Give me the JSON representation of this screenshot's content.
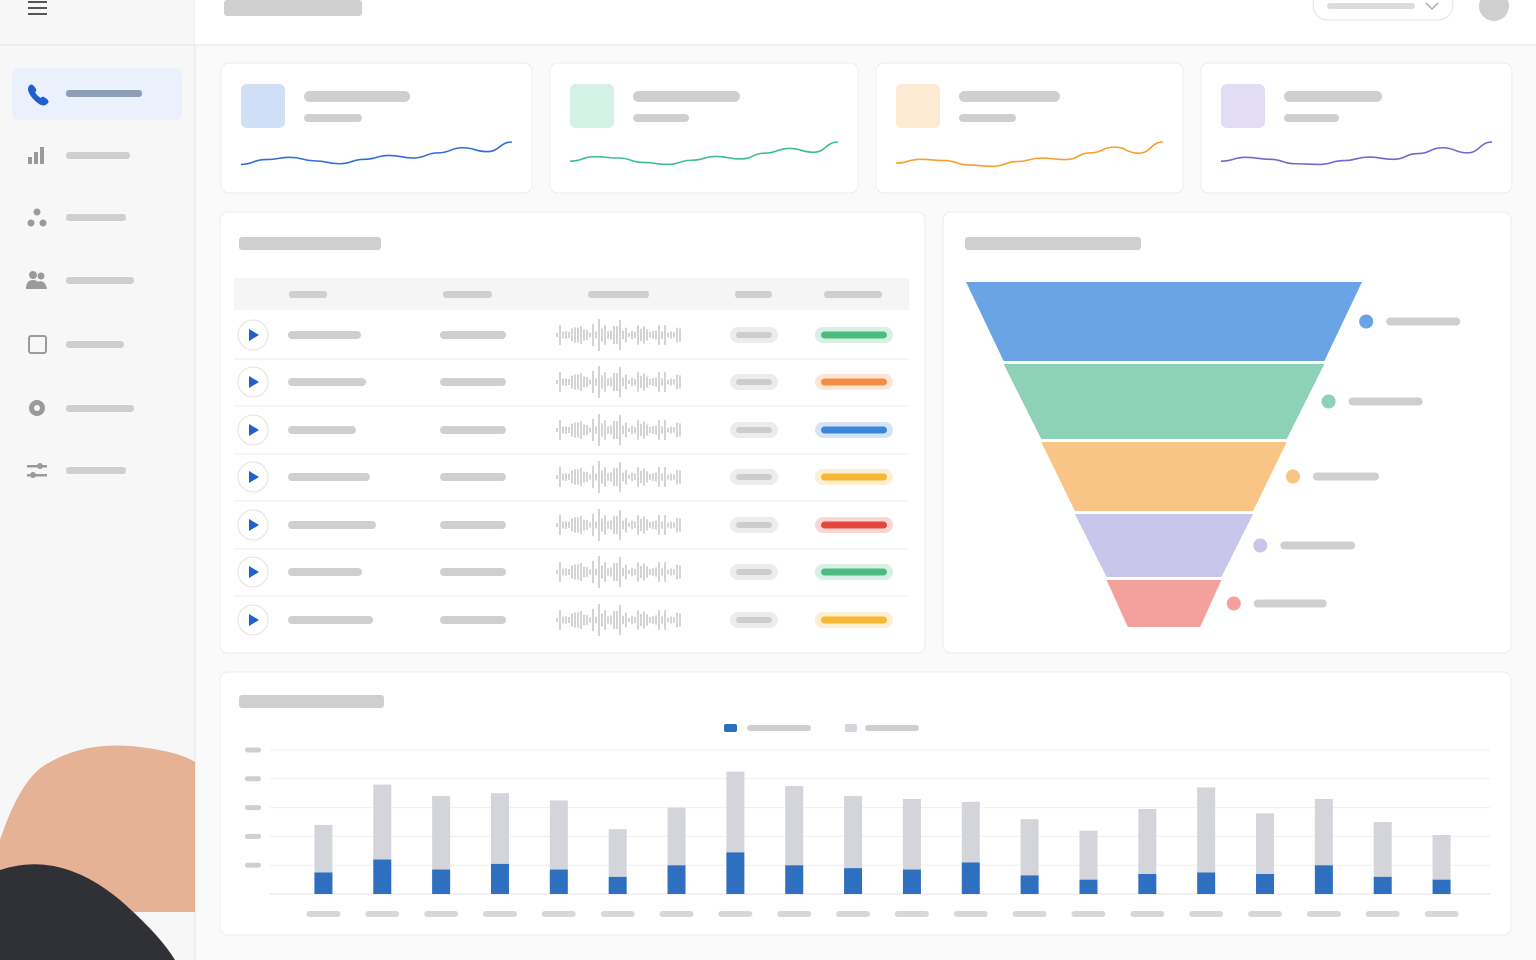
{
  "chart_data": [
    {
      "type": "line",
      "color": "#2f6fd6",
      "ylim": [
        0,
        10
      ],
      "values": [
        3,
        4.5,
        5.2,
        4.1,
        3.2,
        4.6,
        5.8,
        5,
        6.6,
        8.2,
        7,
        10
      ]
    },
    {
      "type": "line",
      "color": "#3dbf8f",
      "ylim": [
        0,
        10
      ],
      "values": [
        4,
        5.4,
        5,
        3.6,
        3,
        4.3,
        5.5,
        4.7,
        6.5,
        8,
        6.8,
        10
      ]
    },
    {
      "type": "line",
      "color": "#f5a030",
      "ylim": [
        0,
        10
      ],
      "values": [
        3.4,
        4.6,
        4.2,
        2.8,
        2.4,
        3.9,
        5,
        4.5,
        6.6,
        8.4,
        6.5,
        10
      ]
    },
    {
      "type": "line",
      "color": "#7b62d0",
      "ylim": [
        0,
        10
      ],
      "values": [
        4,
        5.2,
        4.6,
        3.2,
        3,
        4.2,
        5.3,
        4.6,
        6.4,
        8.2,
        6.6,
        10
      ]
    },
    {
      "type": "funnel",
      "values": [
        100,
        81,
        62,
        45,
        29
      ],
      "colors": [
        "#6aa3e6",
        "#8ed1b9",
        "#f8c586",
        "#c8c6ea",
        "#f4a09d"
      ]
    },
    {
      "type": "bar",
      "stacked": true,
      "ylim": [
        0,
        5
      ],
      "yticks": [
        1,
        2,
        3,
        4,
        5
      ],
      "grid": true,
      "categories": [
        null,
        null,
        null,
        null,
        null,
        null,
        null,
        null,
        null,
        null,
        null,
        null,
        null,
        null,
        null,
        null,
        null,
        null,
        null,
        null
      ],
      "series": [
        {
          "color": "#2f6fbf",
          "values": [
            0.75,
            1.2,
            0.85,
            1.05,
            0.85,
            0.6,
            1.0,
            1.45,
            1.0,
            0.9,
            0.85,
            1.1,
            0.65,
            0.5,
            0.7,
            0.75,
            0.7,
            1.0,
            0.6,
            0.5
          ]
        },
        {
          "color": "#d3d5da",
          "values": [
            1.65,
            2.6,
            2.55,
            2.45,
            2.4,
            1.65,
            2.0,
            2.8,
            2.75,
            2.5,
            2.45,
            2.1,
            1.95,
            1.7,
            2.25,
            2.95,
            2.1,
            2.3,
            1.9,
            1.55
          ]
        }
      ]
    }
  ],
  "calls_table": {
    "status_colors": [
      "#4cbb7f",
      "#f58d3f",
      "#3a86d8",
      "#f7b733",
      "#e5473f",
      "#4cbb7f",
      "#f7b733"
    ]
  }
}
